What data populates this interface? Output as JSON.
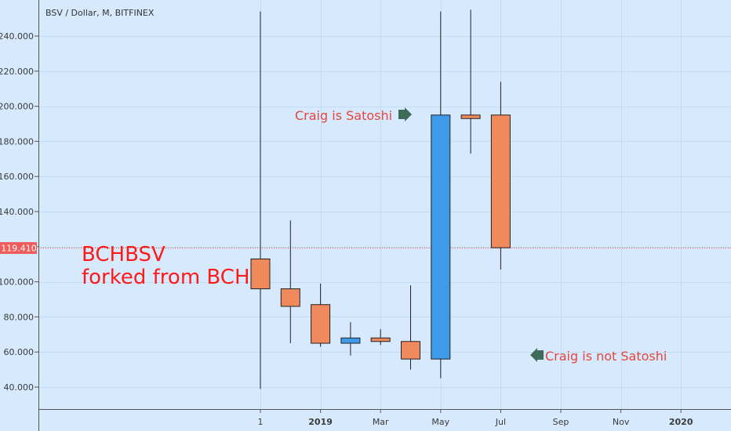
{
  "chart_data": {
    "type": "candlestick",
    "title": "BSV / Dollar, M, BITFINEX",
    "ylim": [
      30,
      262
    ],
    "y_ticks": [
      "240.000",
      "220.000",
      "200.000",
      "180.000",
      "160.000",
      "140.000",
      "120.000",
      "100.000",
      "80.000",
      "60.000",
      "40.000"
    ],
    "y_tick_values": [
      240,
      220,
      200,
      180,
      160,
      140,
      120,
      100,
      80,
      60,
      40
    ],
    "x_ticks": [
      {
        "label": "1",
        "bold": false,
        "slot": 0
      },
      {
        "label": "2019",
        "bold": true,
        "slot": 2
      },
      {
        "label": "Mar",
        "bold": false,
        "slot": 4
      },
      {
        "label": "May",
        "bold": false,
        "slot": 6
      },
      {
        "label": "Jul",
        "bold": false,
        "slot": 8
      },
      {
        "label": "Sep",
        "bold": false,
        "slot": 10
      },
      {
        "label": "Nov",
        "bold": false,
        "slot": 12
      },
      {
        "label": "2020",
        "bold": true,
        "slot": 14
      }
    ],
    "candles": [
      {
        "open": 113,
        "high": 254,
        "low": 39,
        "close": 96,
        "color": "#f08a5d"
      },
      {
        "open": 96,
        "high": 135,
        "low": 65,
        "close": 86,
        "color": "#f08a5d"
      },
      {
        "open": 87,
        "high": 99,
        "low": 63,
        "close": 65,
        "color": "#f08a5d"
      },
      {
        "open": 65,
        "high": 77,
        "low": 58,
        "close": 68,
        "color": "#3d9bea"
      },
      {
        "open": 68,
        "high": 73,
        "low": 64,
        "close": 66,
        "color": "#f08a5d"
      },
      {
        "open": 66,
        "high": 98,
        "low": 50,
        "close": 56,
        "color": "#f08a5d"
      },
      {
        "open": 56,
        "high": 254,
        "low": 45,
        "close": 195,
        "color": "#3d9bea"
      },
      {
        "open": 195,
        "high": 255,
        "low": 173,
        "close": 193,
        "color": "#f08a5d"
      },
      {
        "open": 195,
        "high": 214,
        "low": 107,
        "close": 119.41,
        "color": "#f08a5d"
      }
    ],
    "last_price": "119.410",
    "last_price_value": 119.41,
    "annotations": [
      {
        "text": "BCHBSV\nforked from BCH",
        "color": "#ff1a1a"
      },
      {
        "text": "Craig is Satoshi",
        "color": "#e8453c"
      },
      {
        "text": "Craig is not Satoshi",
        "color": "#e8453c"
      }
    ]
  },
  "labels": {
    "title": "BSV / Dollar, M, BITFINEX",
    "ann_fork_1": "BCHBSV",
    "ann_fork_2": "forked from BCH",
    "ann_satoshi": "Craig is Satoshi",
    "ann_not_satoshi": "Craig is not Satoshi",
    "last_price": "119.410"
  },
  "colors": {
    "background": "#d6e9fd",
    "up": "#3d9bea",
    "down": "#f08a5d",
    "price_line": "#e84a4a",
    "arrow": "#3e6b5a"
  }
}
